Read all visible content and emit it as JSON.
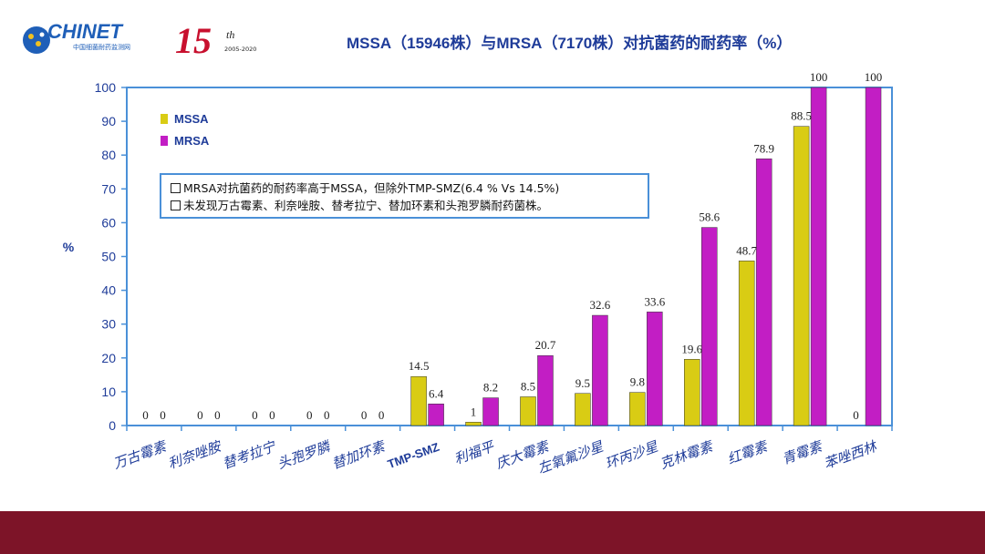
{
  "header": {
    "logo_text": "CHINET",
    "logo_subtext": "中国细菌耐药监测网",
    "anniversary": "15",
    "anniversary_suffix": "th",
    "anniversary_years": "2005-2020",
    "title": "MSSA（15946株）与MRSA（7170株）对抗菌药的耐药率（%）"
  },
  "notes": [
    "MRSA对抗菌药的耐药率高于MSSA，但除外TMP-SMZ(6.4 % Vs 14.5%)",
    "未发现万古霉素、利奈唑胺、替考拉宁、替加环素和头孢罗膦耐药菌株。"
  ],
  "colors": {
    "mssa": "#d9cc14",
    "mrsa": "#c21ec4",
    "axis": "#4a90d8",
    "title": "#1f3c99",
    "band": "#7d1428"
  },
  "chart_data": {
    "type": "bar",
    "categories": [
      "万古霉素",
      "利奈唑胺",
      "替考拉宁",
      "头孢罗膦",
      "替加环素",
      "TMP-SMZ",
      "利福平",
      "庆大霉素",
      "左氧氟沙星",
      "环丙沙星",
      "克林霉素",
      "红霉素",
      "青霉素",
      "苯唑西林"
    ],
    "series": [
      {
        "name": "MSSA",
        "values": [
          0,
          0,
          0,
          0,
          0,
          14.5,
          1,
          8.5,
          9.5,
          9.8,
          19.6,
          48.7,
          88.5,
          0
        ]
      },
      {
        "name": "MRSA",
        "values": [
          0,
          0,
          0,
          0,
          0,
          6.4,
          8.2,
          20.7,
          32.6,
          33.6,
          58.6,
          78.9,
          100,
          100
        ]
      }
    ],
    "ylabel": "%",
    "ylim": [
      0,
      100
    ],
    "yticks": [
      0,
      10,
      20,
      30,
      40,
      50,
      60,
      70,
      80,
      90,
      100
    ],
    "legend_position": "top-left",
    "grid": false
  }
}
